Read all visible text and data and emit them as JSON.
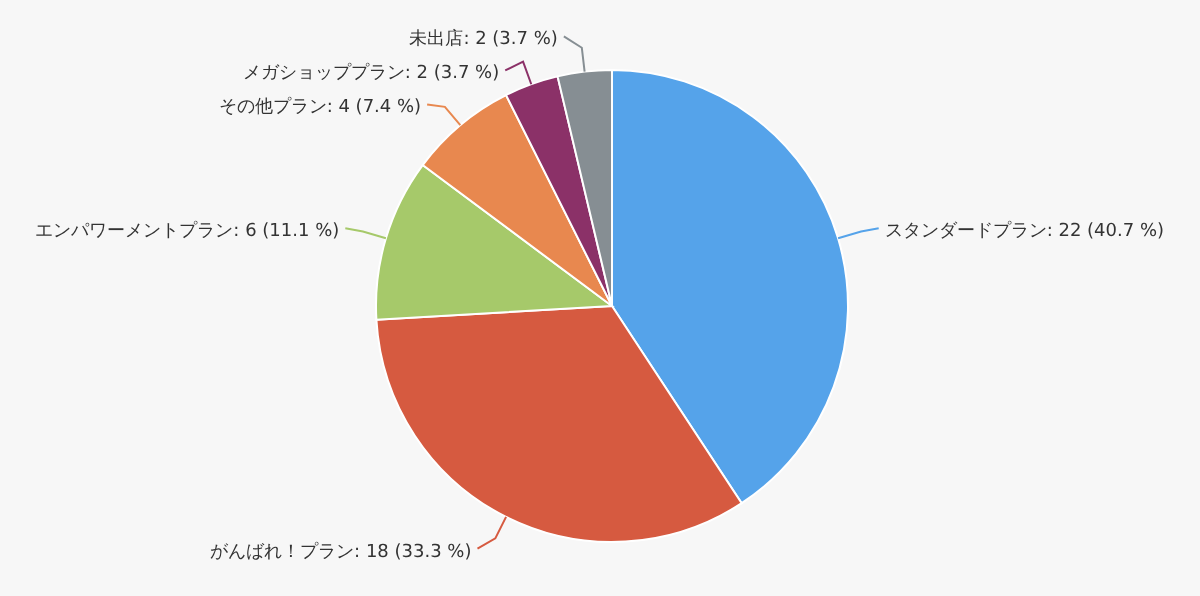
{
  "chart_data": {
    "type": "pie",
    "categories": [
      "スタンダードプラン",
      "がんばれ！プラン",
      "エンパワーメントプラン",
      "その他プラン",
      "メガショッププラン",
      "未出店"
    ],
    "values": [
      22,
      18,
      6,
      4,
      2,
      2
    ],
    "value_labels": [
      "22 (40.7 %)",
      "18 (33.3 %)",
      "6 (11.1 %)",
      "4 (7.4 %)",
      "2 (3.7 %)",
      "2 (3.7 %)"
    ],
    "colors": [
      "#55a3ea",
      "#d65a40",
      "#a6c96a",
      "#e8884f",
      "#8b3168",
      "#868e93"
    ]
  }
}
